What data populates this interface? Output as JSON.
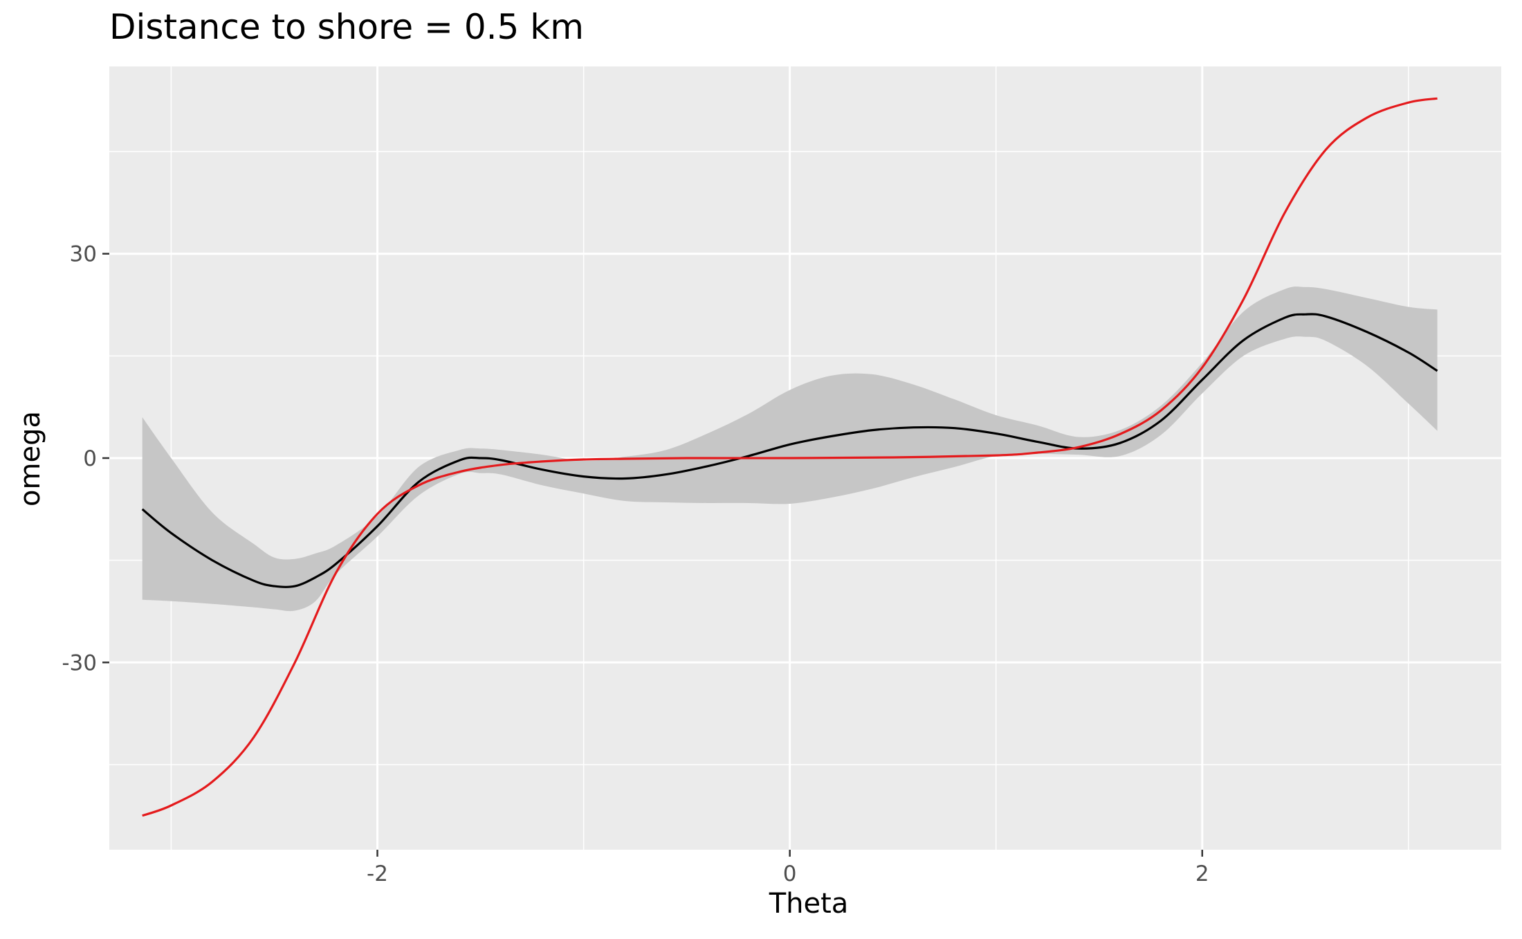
{
  "chart_data": {
    "type": "line",
    "title": "Distance to shore = 0.5 km",
    "xlabel": "Theta",
    "ylabel": "omega",
    "xlim": [
      -3.3,
      3.45
    ],
    "ylim": [
      -57.5,
      57.5
    ],
    "x_ticks": [
      -2,
      0,
      2
    ],
    "x_tick_labels": [
      "-2",
      "0",
      "2"
    ],
    "y_ticks": [
      -30,
      0,
      30
    ],
    "y_tick_labels": [
      "-30",
      "0",
      "30"
    ],
    "grid": true,
    "legend": "none",
    "series": [
      {
        "color": "#000000",
        "band_color": "#c6c6c6",
        "x": [
          -3.14,
          -3.0,
          -2.8,
          -2.6,
          -2.5,
          -2.4,
          -2.3,
          -2.2,
          -2.0,
          -1.8,
          -1.6,
          -1.5,
          -1.4,
          -1.2,
          -1.0,
          -0.8,
          -0.6,
          -0.4,
          -0.2,
          0.0,
          0.2,
          0.4,
          0.6,
          0.8,
          1.0,
          1.2,
          1.4,
          1.6,
          1.8,
          2.0,
          2.2,
          2.4,
          2.5,
          2.6,
          2.8,
          3.0,
          3.14
        ],
        "y": [
          -7.5,
          -11,
          -15,
          -18,
          -18.8,
          -18.8,
          -17.5,
          -15.5,
          -10,
          -3.5,
          -0.3,
          0,
          -0.3,
          -1.7,
          -2.7,
          -3,
          -2.4,
          -1.2,
          0.3,
          2,
          3.2,
          4.1,
          4.5,
          4.4,
          3.6,
          2.4,
          1.4,
          2.2,
          5.5,
          11.5,
          17.3,
          20.6,
          21.1,
          20.8,
          18.5,
          15.5,
          12.8
        ],
        "lower": [
          -20.8,
          -21,
          -21.4,
          -21.9,
          -22.2,
          -22.4,
          -21,
          -17,
          -11.5,
          -5.5,
          -2.3,
          -2.2,
          -2.4,
          -4,
          -5.2,
          -6.3,
          -6.5,
          -6.6,
          -6.6,
          -6.7,
          -5.8,
          -4.5,
          -2.8,
          -1.3,
          0.3,
          0.6,
          0.5,
          0.3,
          3.4,
          9.5,
          15,
          17.5,
          17.8,
          17.2,
          13.5,
          8,
          4
        ],
        "upper": [
          6,
          0,
          -8,
          -12.6,
          -14.6,
          -14.8,
          -14,
          -12.8,
          -8.5,
          -1.3,
          1.2,
          1.4,
          1.2,
          0.5,
          -0.4,
          0.2,
          1.2,
          3.6,
          6.5,
          10,
          12.1,
          12.3,
          10.8,
          8.6,
          6.3,
          4.8,
          3.1,
          4.1,
          7.7,
          14,
          21.5,
          24.8,
          25.1,
          24.8,
          23.5,
          22.2,
          21.8
        ]
      },
      {
        "color": "#e41a1c",
        "x": [
          -3.14,
          -3.0,
          -2.8,
          -2.6,
          -2.4,
          -2.2,
          -2.0,
          -1.8,
          -1.6,
          -1.4,
          -1.2,
          -1.0,
          -0.8,
          -0.5,
          0.0,
          0.5,
          1.0,
          1.2,
          1.4,
          1.6,
          1.8,
          2.0,
          2.2,
          2.4,
          2.6,
          2.8,
          3.0,
          3.14
        ],
        "y": [
          -52.5,
          -51,
          -47.5,
          -41,
          -30,
          -16.8,
          -8.2,
          -4,
          -2,
          -1,
          -0.5,
          -0.2,
          -0.1,
          0,
          0,
          0.1,
          0.4,
          0.8,
          1.6,
          3.5,
          7,
          13.3,
          23.3,
          36,
          45.3,
          50,
          52.2,
          52.8
        ]
      }
    ]
  }
}
